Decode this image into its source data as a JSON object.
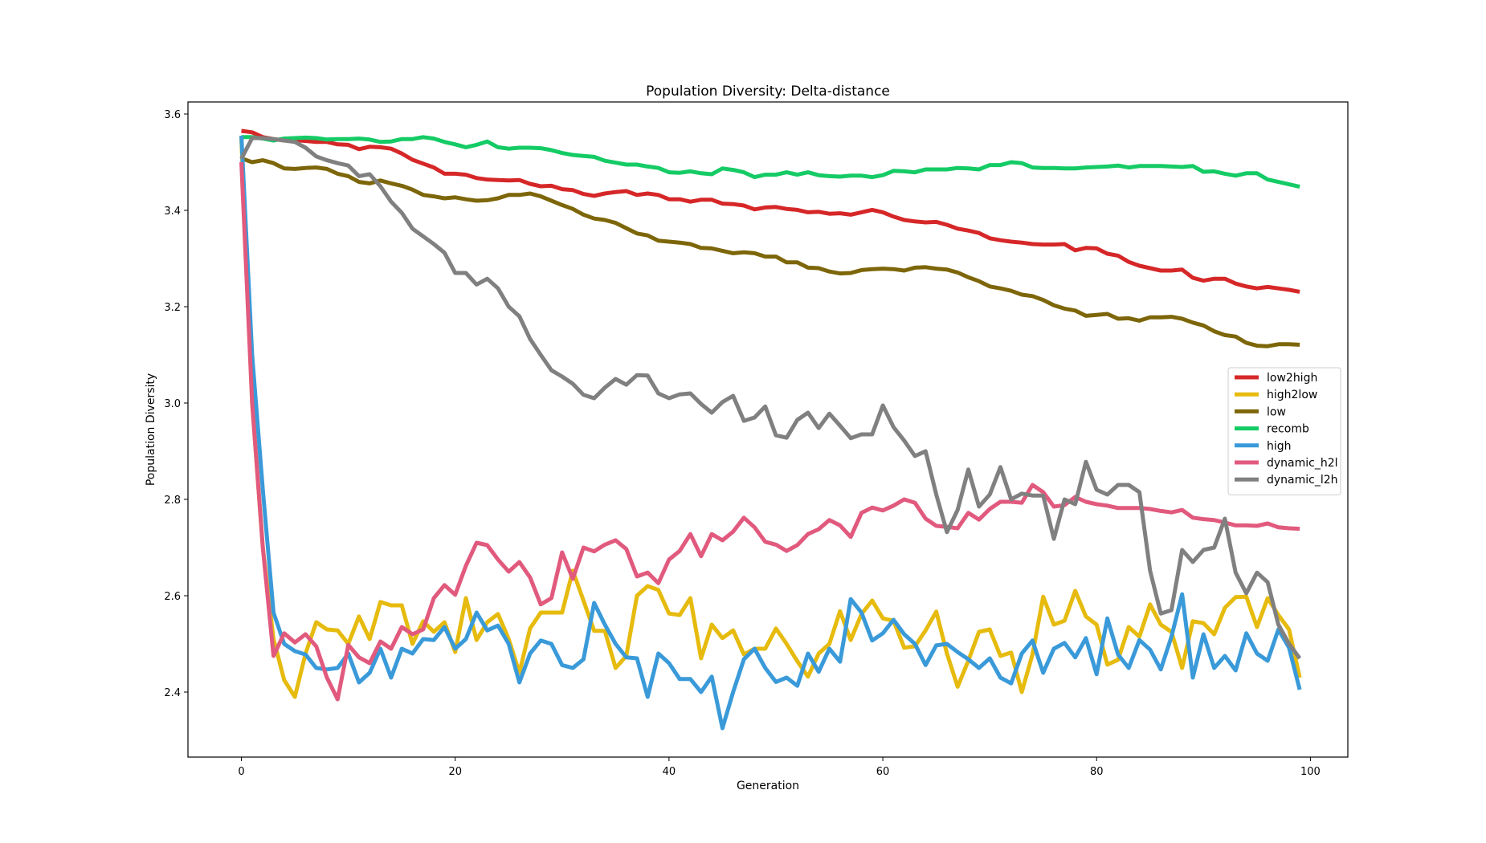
{
  "chart_data": {
    "type": "line",
    "title": "Population Diversity: Delta-distance",
    "xlabel": "Generation",
    "ylabel": "Population Diversity",
    "xlim": [
      -5,
      103.5
    ],
    "ylim": [
      2.265,
      3.625
    ],
    "xticks": [
      0,
      20,
      40,
      60,
      80,
      100
    ],
    "yticks": [
      2.4,
      2.6,
      2.8,
      3.0,
      3.2,
      3.4,
      3.6
    ],
    "xtick_labels": [
      "0",
      "20",
      "40",
      "60",
      "80",
      "100"
    ],
    "ytick_labels": [
      "2.4",
      "2.6",
      "2.8",
      "3.0",
      "3.2",
      "3.4",
      "3.6"
    ],
    "grid": false,
    "legend_position": "center-right",
    "series": [
      {
        "name": "low2high",
        "color": "#d62728",
        "values": [
          3.565,
          3.562,
          3.552,
          3.548,
          3.545,
          3.546,
          3.544,
          3.542,
          3.542,
          3.537,
          3.536,
          3.527,
          3.532,
          3.531,
          3.528,
          3.518,
          3.505,
          3.497,
          3.489,
          3.476,
          3.476,
          3.474,
          3.467,
          3.464,
          3.463,
          3.462,
          3.463,
          3.455,
          3.45,
          3.451,
          3.444,
          3.442,
          3.434,
          3.43,
          3.435,
          3.438,
          3.44,
          3.432,
          3.435,
          3.432,
          3.423,
          3.423,
          3.418,
          3.422,
          3.422,
          3.414,
          3.413,
          3.41,
          3.402,
          3.406,
          3.407,
          3.403,
          3.401,
          3.396,
          3.397,
          3.393,
          3.394,
          3.391,
          3.396,
          3.401,
          3.396,
          3.387,
          3.38,
          3.377,
          3.375,
          3.376,
          3.37,
          3.362,
          3.358,
          3.353,
          3.342,
          3.338,
          3.335,
          3.333,
          3.33,
          3.329,
          3.329,
          3.33,
          3.317,
          3.322,
          3.321,
          3.31,
          3.306,
          3.293,
          3.285,
          3.28,
          3.275,
          3.275,
          3.277,
          3.26,
          3.254,
          3.258,
          3.258,
          3.248,
          3.242,
          3.238,
          3.241,
          3.238,
          3.235,
          3.231
        ]
      },
      {
        "name": "high2low",
        "color": "#e6bb0e",
        "values": [
          3.55,
          3.0,
          2.7,
          2.51,
          2.425,
          2.39,
          2.48,
          2.545,
          2.53,
          2.528,
          2.5,
          2.557,
          2.51,
          2.587,
          2.58,
          2.58,
          2.5,
          2.547,
          2.525,
          2.545,
          2.483,
          2.595,
          2.508,
          2.545,
          2.562,
          2.51,
          2.44,
          2.532,
          2.565,
          2.565,
          2.565,
          2.652,
          2.59,
          2.527,
          2.527,
          2.45,
          2.475,
          2.6,
          2.62,
          2.612,
          2.563,
          2.56,
          2.595,
          2.47,
          2.54,
          2.512,
          2.528,
          2.478,
          2.49,
          2.49,
          2.532,
          2.5,
          2.464,
          2.432,
          2.48,
          2.5,
          2.568,
          2.508,
          2.562,
          2.59,
          2.553,
          2.548,
          2.492,
          2.495,
          2.528,
          2.567,
          2.48,
          2.411,
          2.465,
          2.525,
          2.53,
          2.475,
          2.482,
          2.4,
          2.478,
          2.598,
          2.54,
          2.548,
          2.61,
          2.557,
          2.54,
          2.457,
          2.467,
          2.535,
          2.515,
          2.582,
          2.54,
          2.525,
          2.45,
          2.547,
          2.543,
          2.52,
          2.575,
          2.597,
          2.598,
          2.535,
          2.595,
          2.56,
          2.53,
          2.43
        ]
      },
      {
        "name": "low",
        "color": "#7d6609",
        "values": [
          3.508,
          3.5,
          3.504,
          3.498,
          3.487,
          3.486,
          3.488,
          3.489,
          3.486,
          3.476,
          3.471,
          3.459,
          3.456,
          3.462,
          3.456,
          3.451,
          3.443,
          3.432,
          3.429,
          3.425,
          3.427,
          3.423,
          3.42,
          3.421,
          3.425,
          3.432,
          3.432,
          3.435,
          3.429,
          3.42,
          3.411,
          3.403,
          3.391,
          3.383,
          3.38,
          3.374,
          3.363,
          3.352,
          3.348,
          3.337,
          3.335,
          3.333,
          3.33,
          3.322,
          3.321,
          3.316,
          3.311,
          3.313,
          3.311,
          3.304,
          3.304,
          3.292,
          3.292,
          3.281,
          3.28,
          3.273,
          3.269,
          3.27,
          3.276,
          3.278,
          3.279,
          3.278,
          3.275,
          3.281,
          3.282,
          3.279,
          3.277,
          3.271,
          3.261,
          3.253,
          3.242,
          3.238,
          3.233,
          3.225,
          3.222,
          3.214,
          3.203,
          3.196,
          3.192,
          3.181,
          3.183,
          3.185,
          3.175,
          3.176,
          3.171,
          3.178,
          3.178,
          3.179,
          3.175,
          3.167,
          3.161,
          3.149,
          3.141,
          3.138,
          3.125,
          3.119,
          3.118,
          3.122,
          3.122,
          3.121
        ]
      },
      {
        "name": "recomb",
        "color": "#15cb65",
        "values": [
          3.552,
          3.552,
          3.549,
          3.545,
          3.549,
          3.55,
          3.551,
          3.55,
          3.547,
          3.548,
          3.548,
          3.549,
          3.547,
          3.542,
          3.543,
          3.548,
          3.548,
          3.552,
          3.549,
          3.542,
          3.537,
          3.531,
          3.536,
          3.543,
          3.531,
          3.528,
          3.53,
          3.53,
          3.529,
          3.525,
          3.519,
          3.515,
          3.513,
          3.511,
          3.503,
          3.499,
          3.495,
          3.495,
          3.491,
          3.488,
          3.479,
          3.478,
          3.481,
          3.477,
          3.475,
          3.487,
          3.484,
          3.479,
          3.469,
          3.474,
          3.474,
          3.479,
          3.474,
          3.479,
          3.473,
          3.471,
          3.47,
          3.472,
          3.472,
          3.469,
          3.473,
          3.482,
          3.481,
          3.479,
          3.485,
          3.485,
          3.485,
          3.488,
          3.487,
          3.485,
          3.494,
          3.494,
          3.5,
          3.498,
          3.489,
          3.488,
          3.488,
          3.487,
          3.487,
          3.489,
          3.49,
          3.491,
          3.493,
          3.489,
          3.492,
          3.492,
          3.492,
          3.491,
          3.49,
          3.492,
          3.48,
          3.481,
          3.476,
          3.472,
          3.477,
          3.477,
          3.464,
          3.459,
          3.454,
          3.449
        ]
      },
      {
        "name": "high",
        "color": "#3a9ad9",
        "values": [
          3.555,
          3.1,
          2.82,
          2.565,
          2.5,
          2.485,
          2.478,
          2.45,
          2.447,
          2.45,
          2.48,
          2.42,
          2.44,
          2.49,
          2.43,
          2.49,
          2.48,
          2.51,
          2.508,
          2.535,
          2.49,
          2.51,
          2.565,
          2.528,
          2.538,
          2.5,
          2.42,
          2.48,
          2.507,
          2.5,
          2.456,
          2.45,
          2.468,
          2.585,
          2.54,
          2.5,
          2.472,
          2.47,
          2.39,
          2.48,
          2.46,
          2.427,
          2.427,
          2.4,
          2.432,
          2.325,
          2.4,
          2.468,
          2.49,
          2.45,
          2.421,
          2.43,
          2.413,
          2.48,
          2.442,
          2.49,
          2.463,
          2.593,
          2.565,
          2.507,
          2.522,
          2.55,
          2.52,
          2.5,
          2.456,
          2.497,
          2.5,
          2.483,
          2.468,
          2.45,
          2.47,
          2.43,
          2.418,
          2.48,
          2.507,
          2.44,
          2.49,
          2.502,
          2.472,
          2.512,
          2.437,
          2.553,
          2.478,
          2.45,
          2.508,
          2.488,
          2.447,
          2.515,
          2.603,
          2.43,
          2.52,
          2.45,
          2.475,
          2.445,
          2.522,
          2.48,
          2.465,
          2.53,
          2.492,
          2.405
        ]
      },
      {
        "name": "dynamic_h2l",
        "color": "#e15a7e",
        "values": [
          3.5,
          3.0,
          2.7,
          2.475,
          2.522,
          2.503,
          2.52,
          2.495,
          2.43,
          2.385,
          2.498,
          2.472,
          2.46,
          2.505,
          2.49,
          2.535,
          2.52,
          2.53,
          2.595,
          2.622,
          2.602,
          2.662,
          2.71,
          2.705,
          2.675,
          2.65,
          2.67,
          2.638,
          2.582,
          2.595,
          2.69,
          2.635,
          2.7,
          2.692,
          2.706,
          2.715,
          2.697,
          2.64,
          2.648,
          2.626,
          2.675,
          2.693,
          2.728,
          2.682,
          2.728,
          2.715,
          2.733,
          2.762,
          2.742,
          2.712,
          2.706,
          2.693,
          2.705,
          2.728,
          2.738,
          2.757,
          2.746,
          2.722,
          2.772,
          2.783,
          2.777,
          2.787,
          2.8,
          2.793,
          2.76,
          2.745,
          2.743,
          2.74,
          2.772,
          2.758,
          2.78,
          2.795,
          2.795,
          2.793,
          2.83,
          2.815,
          2.785,
          2.788,
          2.805,
          2.795,
          2.79,
          2.787,
          2.782,
          2.782,
          2.782,
          2.78,
          2.776,
          2.773,
          2.778,
          2.762,
          2.759,
          2.757,
          2.752,
          2.746,
          2.746,
          2.745,
          2.75,
          2.742,
          2.74,
          2.739
        ]
      },
      {
        "name": "dynamic_l2h",
        "color": "#808080",
        "values": [
          3.507,
          3.55,
          3.55,
          3.548,
          3.545,
          3.542,
          3.53,
          3.512,
          3.504,
          3.498,
          3.493,
          3.471,
          3.475,
          3.45,
          3.418,
          3.395,
          3.362,
          3.346,
          3.33,
          3.312,
          3.27,
          3.27,
          3.246,
          3.258,
          3.238,
          3.2,
          3.18,
          3.133,
          3.1,
          3.068,
          3.055,
          3.04,
          3.017,
          3.01,
          3.032,
          3.05,
          3.038,
          3.058,
          3.057,
          3.02,
          3.01,
          3.018,
          3.02,
          2.998,
          2.98,
          3.002,
          3.015,
          2.963,
          2.97,
          2.993,
          2.933,
          2.928,
          2.965,
          2.98,
          2.948,
          2.978,
          2.953,
          2.927,
          2.935,
          2.935,
          2.995,
          2.95,
          2.922,
          2.89,
          2.9,
          2.81,
          2.732,
          2.778,
          2.862,
          2.785,
          2.81,
          2.867,
          2.8,
          2.812,
          2.808,
          2.808,
          2.718,
          2.8,
          2.79,
          2.878,
          2.82,
          2.81,
          2.83,
          2.83,
          2.815,
          2.652,
          2.563,
          2.57,
          2.695,
          2.67,
          2.695,
          2.7,
          2.76,
          2.648,
          2.605,
          2.648,
          2.628,
          2.54,
          2.5,
          2.47
        ]
      }
    ]
  }
}
